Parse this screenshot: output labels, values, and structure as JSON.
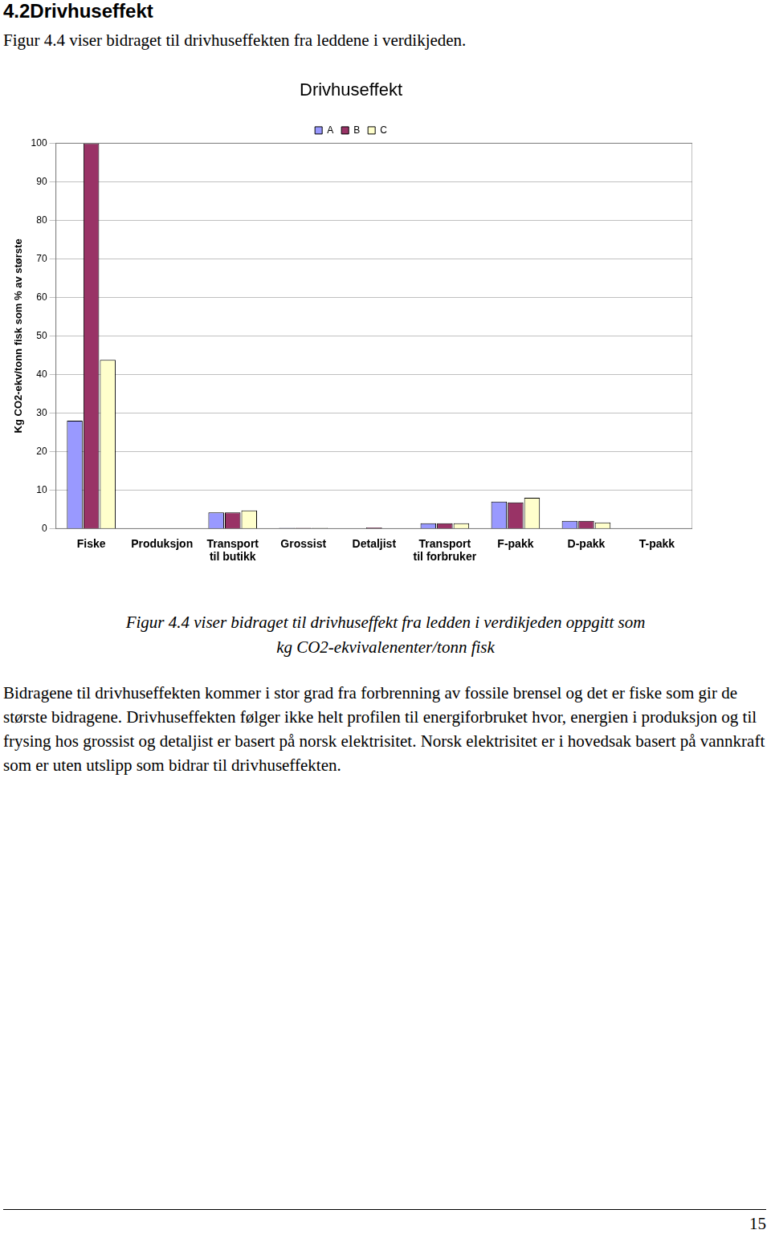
{
  "heading": "4.2Drivhuseffekt",
  "intro": "Figur 4.4 viser bidraget til drivhuseffekten fra leddene i verdikjeden.",
  "chart_data": {
    "type": "bar",
    "title": "Drivhuseffekt",
    "y_label": "Kg CO2-ekv/tonn fisk som % av største",
    "categories": [
      "Fiske",
      "Produksjon",
      [
        "Transport",
        "til butikk"
      ],
      "Grossist",
      "Detaljist",
      [
        "Transport",
        "til forbruker"
      ],
      "F-pakk",
      "D-pakk",
      "T-pakk"
    ],
    "series": [
      {
        "name": "A",
        "color": "#9999ff",
        "values": [
          28,
          0,
          4.2,
          0.2,
          0,
          1.4,
          7,
          2,
          0
        ]
      },
      {
        "name": "B",
        "color": "#993366",
        "values": [
          100,
          0,
          4.2,
          0.2,
          0.3,
          1.4,
          6.8,
          2,
          0
        ]
      },
      {
        "name": "C",
        "color": "#ffffcc",
        "values": [
          43.8,
          0,
          4.7,
          0.2,
          0,
          1.4,
          8,
          1.6,
          0
        ]
      }
    ],
    "ylim": [
      0,
      100
    ],
    "yticks": [
      0,
      10,
      20,
      30,
      40,
      50,
      60,
      70,
      80,
      90,
      100
    ],
    "grid": true,
    "legend": "top"
  },
  "caption": [
    "Figur 4.4 viser bidraget til drivhuseffekt fra ledden i verdikjeden oppgitt som",
    "kg CO2-ekvivalenenter/tonn fisk"
  ],
  "body": "Bidragene til drivhuseffekten kommer i stor grad fra forbrenning av fossile brensel og det er fiske som gir de største bidragene. Drivhuseffekten følger ikke helt profilen til energiforbruket hvor, energien i produksjon og til frysing hos grossist og detaljist er basert på norsk elektrisitet. Norsk elektrisitet er  i hovedsak basert på vannkraft som er uten utslipp som bidrar til drivhuseffekten.",
  "page_number": "15"
}
